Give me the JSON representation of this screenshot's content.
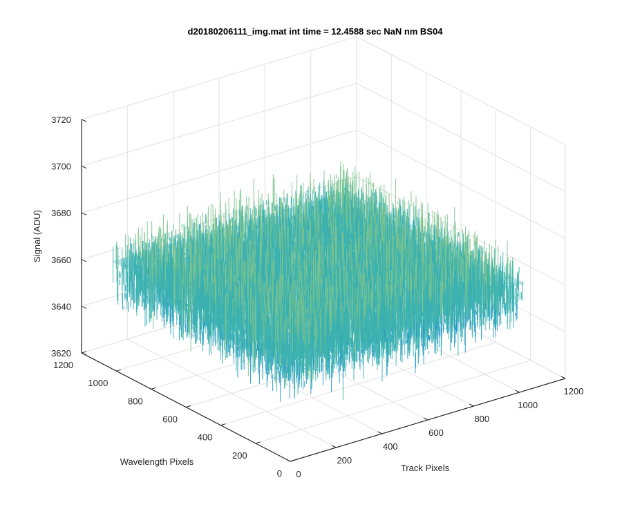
{
  "chart_data": {
    "type": "surface3d",
    "title": "d20180206111_img.mat int time = 12.4588 sec  NaN nm BS04",
    "xlabel": "Track Pixels",
    "ylabel": "Wavelength Pixels",
    "zlabel": "Signal (ADU)",
    "xlim": [
      0,
      1200
    ],
    "ylim": [
      0,
      1200
    ],
    "zlim": [
      3620,
      3720
    ],
    "xticks": [
      "0",
      "200",
      "400",
      "600",
      "800",
      "1000",
      "1200"
    ],
    "yticks": [
      "0",
      "200",
      "400",
      "600",
      "800",
      "1000",
      "1200"
    ],
    "zticks": [
      "3620",
      "3640",
      "3660",
      "3680",
      "3700",
      "3720"
    ],
    "grid": true,
    "data_extent": {
      "x": [
        0,
        1024
      ],
      "y": [
        0,
        1024
      ]
    },
    "signal_level_approx": 3662,
    "signal_noise_range_approx": [
      3630,
      3705
    ],
    "colormap": [
      "#0072bd",
      "#1f96c8",
      "#3bb1b0",
      "#7cc38d",
      "#c8cf6a"
    ]
  }
}
